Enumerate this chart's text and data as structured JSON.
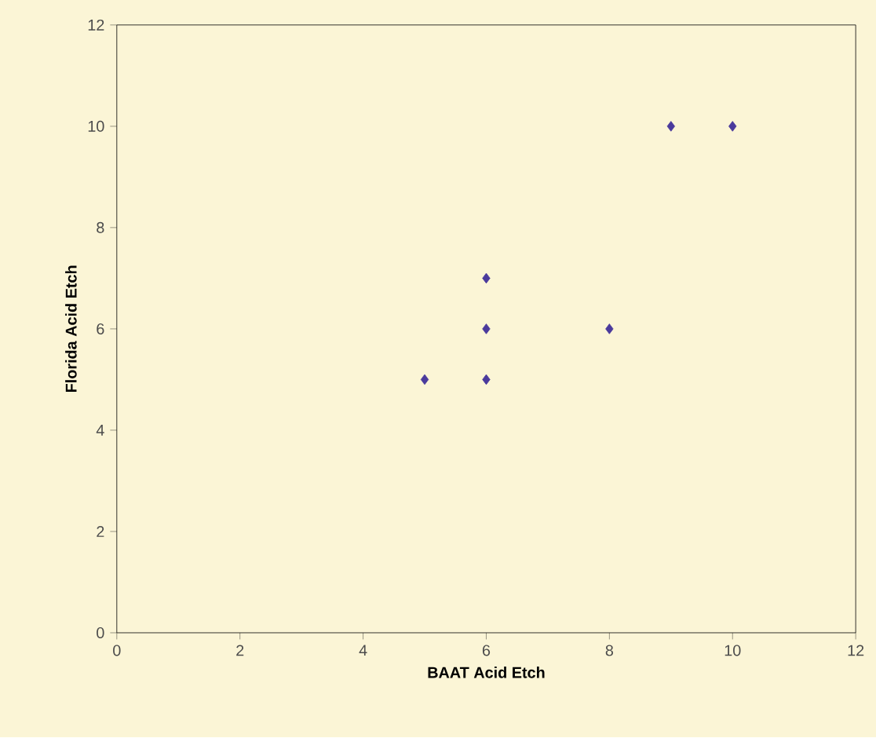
{
  "chart_data": {
    "type": "scatter",
    "xlabel": "BAAT Acid Etch",
    "ylabel": "Florida Acid Etch",
    "series": [
      {
        "color": "#4a3a9c",
        "x": [
          5,
          6,
          6,
          6,
          8,
          9,
          10
        ],
        "values": [
          5,
          5,
          6,
          7,
          6,
          10,
          10
        ]
      }
    ],
    "xlim": [
      0,
      12
    ],
    "ylim": [
      0,
      12
    ],
    "xticks": [
      0,
      2,
      4,
      6,
      8,
      10,
      12
    ],
    "yticks": [
      0,
      2,
      4,
      6,
      8,
      10,
      12
    ],
    "marker": "diamond",
    "grid": false
  }
}
